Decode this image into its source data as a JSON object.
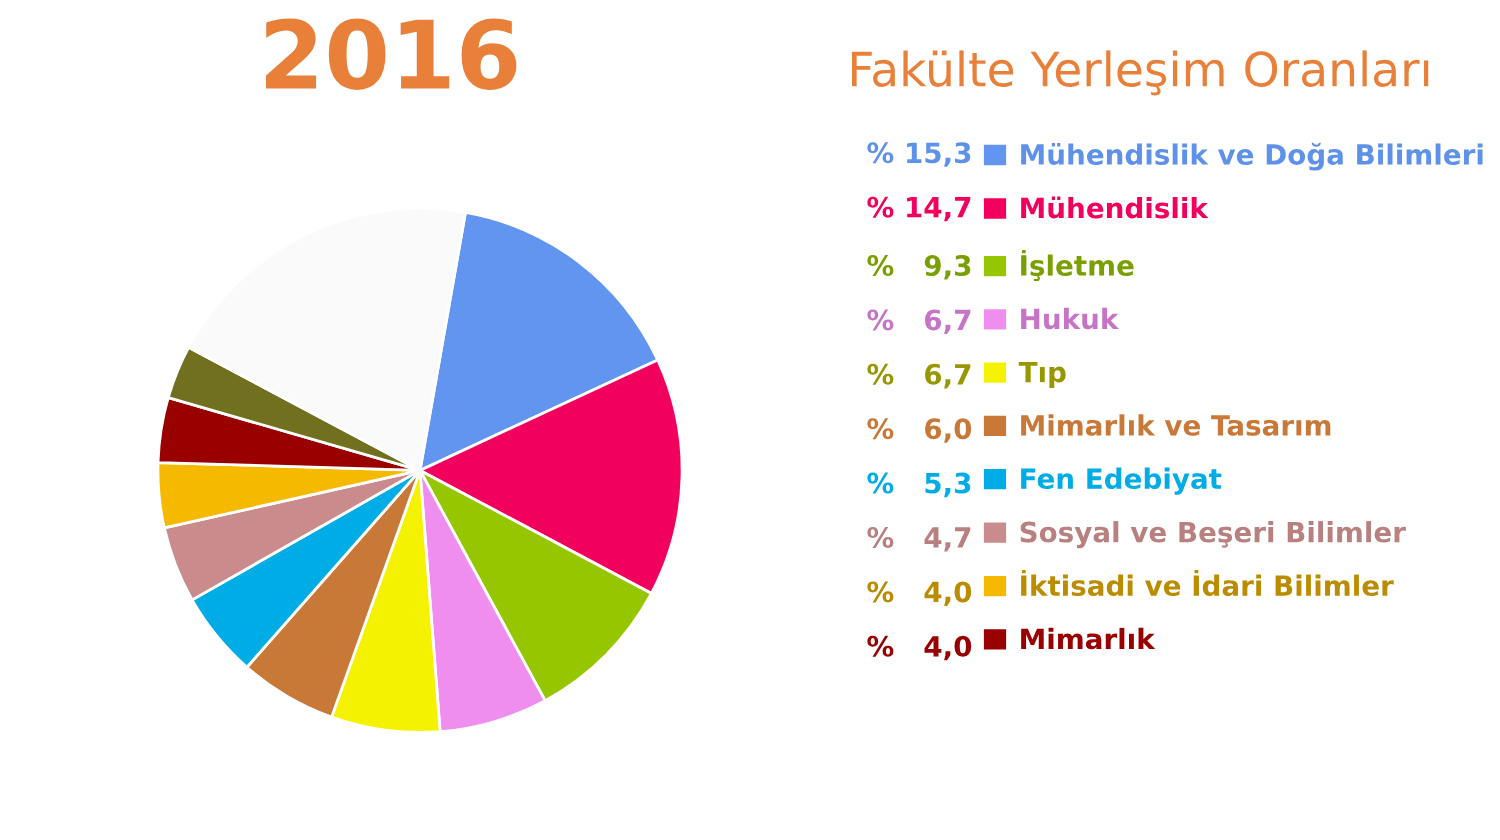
{
  "chart_data": {
    "type": "pie",
    "title": "2016",
    "subtitle": "Fakülte Yerleşim Oranları",
    "categories": [
      "Mühendislik ve Doğa Bilimleri",
      "Mühendislik",
      "İşletme",
      "Hukuk",
      "Tıp",
      "Mimarlık ve Tasarım",
      "Fen Edebiyat",
      "Sosyal ve Beşeri Bilimler",
      "İktisadi ve İdari Bilimler",
      "Mimarlık",
      null,
      null
    ],
    "values": [
      15.3,
      14.7,
      9.3,
      6.7,
      6.7,
      6.0,
      5.3,
      4.7,
      4.0,
      4.0,
      3.3,
      20.0
    ],
    "value_labels": [
      "% 15,3",
      "% 14,7",
      "%   9,3",
      "%   6,7",
      "%   6,7",
      "%   6,0",
      "%   5,3",
      "%   4,7",
      "%   4,0",
      "%   4,0",
      null,
      null
    ],
    "colors": [
      "#6195f0",
      "#f2005e",
      "#95c600",
      "#f08ef0",
      "#f5f200",
      "#c87837",
      "#00ace6",
      "#c98b8b",
      "#f5ba00",
      "#990000",
      "#70701e",
      "#fafafa"
    ],
    "legend": "right"
  }
}
